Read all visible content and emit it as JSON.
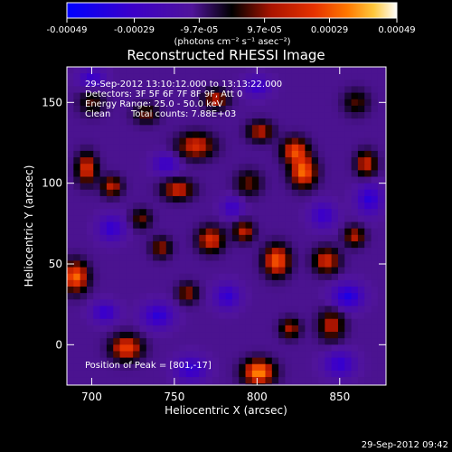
{
  "chart_data": {
    "type": "heatmap",
    "title": "Reconstructed RHESSI Image",
    "xlabel": "Heliocentric X (arcsec)",
    "ylabel": "Heliocentric Y (arcsec)",
    "xlim": [
      685,
      878
    ],
    "ylim": [
      -25,
      172
    ],
    "xticks": [
      700,
      750,
      800,
      850
    ],
    "yticks": [
      0,
      50,
      100,
      150
    ],
    "colorbar": {
      "units": "(photons cm⁻² s⁻¹ asec⁻²)",
      "min": -0.00049,
      "max": 0.00049,
      "tick_values": [
        -0.00049,
        -0.00029,
        -9.7e-05,
        9.7e-05,
        0.00029,
        0.00049
      ],
      "tick_labels": [
        "-0.00049",
        "-0.00029",
        "-9.7e-05",
        "9.7e-05",
        "0.00029",
        "0.00049"
      ]
    },
    "annotations": {
      "time_range": "29-Sep-2012 13:10:12.000 to 13:13:22.000",
      "detectors": "Detectors: 3F 5F 6F 7F 8F 9F, Att 0",
      "energy": "Energy Range: 25.0 - 50.0 keV",
      "clean": "Clean",
      "total_counts": "Total counts: 7.88E+03",
      "peak": "Position of Peak = [801,-17]"
    },
    "peak": [
      801,
      -17
    ],
    "sources": [
      {
        "x": 801,
        "y": -17,
        "sx": 6,
        "sy": 5,
        "amp": 0.00049
      },
      {
        "x": 812,
        "y": 52,
        "sx": 5,
        "sy": 6,
        "amp": 0.00042
      },
      {
        "x": 828,
        "y": 107,
        "sx": 5,
        "sy": 6,
        "amp": 0.00044
      },
      {
        "x": 823,
        "y": 120,
        "sx": 5,
        "sy": 5,
        "amp": 0.00038
      },
      {
        "x": 690,
        "y": 42,
        "sx": 5,
        "sy": 6,
        "amp": 0.00044
      },
      {
        "x": 721,
        "y": -2,
        "sx": 6,
        "sy": 5,
        "amp": 0.00038
      },
      {
        "x": 697,
        "y": 109,
        "sx": 4,
        "sy": 6,
        "amp": 0.00034
      },
      {
        "x": 712,
        "y": 98,
        "sx": 4,
        "sy": 4,
        "amp": 0.00028
      },
      {
        "x": 763,
        "y": 123,
        "sx": 7,
        "sy": 5,
        "amp": 0.00032
      },
      {
        "x": 752,
        "y": 96,
        "sx": 6,
        "sy": 4,
        "amp": 0.0003
      },
      {
        "x": 772,
        "y": 65,
        "sx": 5,
        "sy": 5,
        "amp": 0.00034
      },
      {
        "x": 792,
        "y": 70,
        "sx": 4,
        "sy": 4,
        "amp": 0.00028
      },
      {
        "x": 842,
        "y": 52,
        "sx": 5,
        "sy": 5,
        "amp": 0.00032
      },
      {
        "x": 859,
        "y": 67,
        "sx": 4,
        "sy": 4,
        "amp": 0.00026
      },
      {
        "x": 866,
        "y": 112,
        "sx": 4,
        "sy": 5,
        "amp": 0.0003
      },
      {
        "x": 845,
        "y": 12,
        "sx": 5,
        "sy": 6,
        "amp": 0.00026
      },
      {
        "x": 820,
        "y": 10,
        "sx": 4,
        "sy": 4,
        "amp": 0.00024
      },
      {
        "x": 775,
        "y": 152,
        "sx": 5,
        "sy": 4,
        "amp": 0.00026
      },
      {
        "x": 802,
        "y": 132,
        "sx": 5,
        "sy": 4,
        "amp": 0.00026
      },
      {
        "x": 742,
        "y": 60,
        "sx": 4,
        "sy": 4,
        "amp": 0.00022
      },
      {
        "x": 758,
        "y": 32,
        "sx": 4,
        "sy": 4,
        "amp": 0.00022
      },
      {
        "x": 733,
        "y": 143,
        "sx": 5,
        "sy": 4,
        "amp": 0.00018
      },
      {
        "x": 700,
        "y": 150,
        "sx": 5,
        "sy": 5,
        "amp": 0.00016
      },
      {
        "x": 795,
        "y": 100,
        "sx": 5,
        "sy": 5,
        "amp": 0.00018
      },
      {
        "x": 860,
        "y": 150,
        "sx": 5,
        "sy": 5,
        "amp": 0.00016
      },
      {
        "x": 730,
        "y": 78,
        "sx": 4,
        "sy": 4,
        "amp": 0.00018
      },
      {
        "x": 708,
        "y": 20,
        "sx": 5,
        "sy": 4,
        "amp": -0.00022
      },
      {
        "x": 740,
        "y": 18,
        "sx": 6,
        "sy": 5,
        "amp": -0.00024
      },
      {
        "x": 782,
        "y": 30,
        "sx": 5,
        "sy": 5,
        "amp": -0.00022
      },
      {
        "x": 855,
        "y": 30,
        "sx": 6,
        "sy": 5,
        "amp": -0.00028
      },
      {
        "x": 868,
        "y": 90,
        "sx": 5,
        "sy": 6,
        "amp": -0.00024
      },
      {
        "x": 840,
        "y": 80,
        "sx": 5,
        "sy": 5,
        "amp": -0.0002
      },
      {
        "x": 745,
        "y": 112,
        "sx": 5,
        "sy": 4,
        "amp": -0.0002
      },
      {
        "x": 712,
        "y": 72,
        "sx": 5,
        "sy": 5,
        "amp": -0.00022
      },
      {
        "x": 700,
        "y": 165,
        "sx": 5,
        "sy": 4,
        "amp": -0.0002
      },
      {
        "x": 800,
        "y": 160,
        "sx": 5,
        "sy": 4,
        "amp": -0.0002
      },
      {
        "x": 760,
        "y": -15,
        "sx": 6,
        "sy": 5,
        "amp": -0.00022
      },
      {
        "x": 850,
        "y": -12,
        "sx": 6,
        "sy": 5,
        "amp": -0.00022
      },
      {
        "x": 785,
        "y": 85,
        "sx": 4,
        "sy": 4,
        "amp": -0.00018
      }
    ]
  },
  "footer": {
    "timestamp": "29-Sep-2012 09:42"
  }
}
